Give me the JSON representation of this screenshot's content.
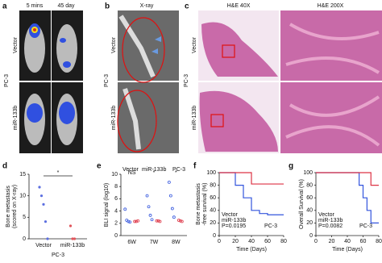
{
  "panel_labels": [
    "a",
    "b",
    "c",
    "d",
    "e",
    "f",
    "g"
  ],
  "panel_a": {
    "columns": [
      "5 mins",
      "45 day"
    ],
    "rows": [
      "Vector",
      "miR-133b"
    ],
    "group": "PC-3"
  },
  "panel_b": {
    "title": "X-ray",
    "rows": [
      "Vector",
      "miR-133b"
    ],
    "group": "PC-3"
  },
  "panel_c": {
    "columns": [
      "H&E 40X",
      "H&E 200X"
    ],
    "rows": [
      "Vector",
      "miR-133b"
    ],
    "group": "PC-3"
  },
  "chart_data": [
    {
      "type": "dot",
      "ylabel": [
        "Bone metastasis",
        "(scored on X-ray)"
      ],
      "xlabel": "PC-3",
      "categories": [
        "Vector",
        "miR-133b"
      ],
      "values": [
        [
          12,
          10,
          8,
          4,
          0
        ],
        [
          3,
          0,
          0
        ]
      ],
      "colors": [
        "#5b6ee0",
        "#e0555b"
      ],
      "annotation": "*",
      "ylim": [
        0,
        15
      ],
      "yticks": [
        0,
        5,
        10,
        15
      ]
    },
    {
      "type": "dot",
      "ylabel": [
        "BLI signal (log10)"
      ],
      "subtitle": "PC-3",
      "categories": [
        "6W",
        "7W",
        "8W"
      ],
      "series": [
        {
          "name": "Vector",
          "color": "#3355dd",
          "values": [
            [
              4.3,
              2.5,
              2.3,
              2.2
            ],
            [
              6.5,
              4.7,
              3.3,
              2.6
            ],
            [
              8.7,
              6.5,
              4.4,
              3
            ]
          ]
        },
        {
          "name": "miR-133b",
          "color": "#dd3344",
          "values": [
            [
              2.3,
              2.3,
              2.4
            ],
            [
              2.4,
              2.4,
              2.3
            ],
            [
              2.5,
              2.4,
              2.3
            ]
          ]
        }
      ],
      "annotations": [
        "NS",
        "*",
        "*"
      ],
      "ylim": [
        0,
        10
      ],
      "yticks": [
        0,
        2,
        4,
        6,
        8,
        10
      ]
    },
    {
      "type": "line",
      "ylabel": [
        "Bone metastasis",
        "-free survival (%)"
      ],
      "xlabel": "Time (Days)",
      "subtitle": "PC-3",
      "pvalue": "P=0.0195",
      "series": [
        {
          "name": "Vector",
          "color": "#3355dd",
          "x": [
            0,
            20,
            20,
            30,
            30,
            40,
            40,
            50,
            50,
            60,
            60,
            80
          ],
          "values": [
            100,
            100,
            80,
            80,
            60,
            60,
            40,
            40,
            35,
            35,
            33,
            33
          ]
        },
        {
          "name": "miR-133b",
          "color": "#dd3344",
          "x": [
            0,
            40,
            40,
            80
          ],
          "values": [
            100,
            100,
            82,
            82
          ]
        }
      ],
      "xlim": [
        0,
        80
      ],
      "xticks": [
        0,
        20,
        40,
        60,
        80
      ],
      "ylim": [
        0,
        100
      ],
      "yticks": [
        0,
        20,
        40,
        60,
        80,
        100
      ]
    },
    {
      "type": "line",
      "ylabel": [
        "Overall Survival (%)"
      ],
      "xlabel": "Time (Days)",
      "subtitle": "PC-3",
      "pvalue": "P=0.0082",
      "series": [
        {
          "name": "Vector",
          "color": "#3355dd",
          "x": [
            0,
            55,
            55,
            60,
            60,
            65,
            65,
            70,
            70,
            80
          ],
          "values": [
            100,
            100,
            80,
            80,
            60,
            60,
            40,
            40,
            20,
            20
          ]
        },
        {
          "name": "miR-133b",
          "color": "#dd3344",
          "x": [
            0,
            70,
            70,
            80
          ],
          "values": [
            100,
            100,
            80,
            80
          ]
        }
      ],
      "xlim": [
        0,
        80
      ],
      "xticks": [
        0,
        20,
        40,
        60,
        80
      ],
      "ylim": [
        0,
        100
      ],
      "yticks": [
        0,
        20,
        40,
        60,
        80,
        100
      ]
    }
  ]
}
